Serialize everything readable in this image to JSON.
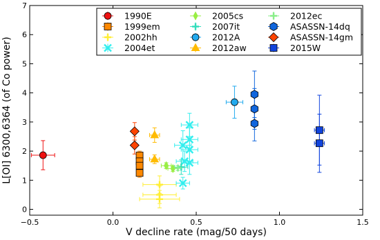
{
  "chart_data": {
    "type": "scatter",
    "xlabel": "V decline rate (mag/50 days)",
    "ylabel": "L[OI] 6300,6364 (of Co power)",
    "xlim": [
      -0.5,
      1.5
    ],
    "ylim": [
      -0.2,
      7
    ],
    "xticks": [
      -0.5,
      0.0,
      0.5,
      1.0,
      1.5
    ],
    "xtick_labels": [
      "−0.5",
      "0.0",
      "0.5",
      "1.0",
      "1.5"
    ],
    "yticks": [
      0,
      1,
      2,
      3,
      4,
      5,
      6,
      7
    ],
    "ytick_labels": [
      "0",
      "1",
      "2",
      "3",
      "4",
      "5",
      "6",
      "7"
    ],
    "grid": false,
    "legend_position": "top-right",
    "series": [
      {
        "name": "1990E",
        "color": "#ee1111",
        "marker": "circle",
        "points": [
          {
            "x": -0.42,
            "y": 1.86,
            "xerr": 0.07,
            "yerr": 0.5
          }
        ]
      },
      {
        "name": "1999em",
        "color": "#ff8800",
        "marker": "square",
        "points": [
          {
            "x": 0.16,
            "y": 1.85,
            "xerr": 0.0,
            "yerr": 0.15
          },
          {
            "x": 0.16,
            "y": 1.65,
            "xerr": 0.0,
            "yerr": 0.15
          },
          {
            "x": 0.16,
            "y": 1.5,
            "xerr": 0.0,
            "yerr": 0.15
          },
          {
            "x": 0.16,
            "y": 1.25,
            "xerr": 0.0,
            "yerr": 0.15
          }
        ]
      },
      {
        "name": "2002hh",
        "color": "#ffee33",
        "marker": "plus",
        "points": [
          {
            "x": 0.28,
            "y": 0.85,
            "xerr": 0.1,
            "yerr": 0.3
          },
          {
            "x": 0.28,
            "y": 0.5,
            "xerr": 0.1,
            "yerr": 0.3
          },
          {
            "x": 0.28,
            "y": 0.35,
            "xerr": 0.12,
            "yerr": 0.3
          }
        ]
      },
      {
        "name": "2004et",
        "color": "#33eeee",
        "marker": "x",
        "points": [
          {
            "x": 0.42,
            "y": 2.2,
            "xerr": 0.05,
            "yerr": 0.5
          },
          {
            "x": 0.43,
            "y": 1.65,
            "xerr": 0.05,
            "yerr": 0.35
          },
          {
            "x": 0.46,
            "y": 2.9,
            "xerr": 0.05,
            "yerr": 0.4
          },
          {
            "x": 0.46,
            "y": 2.4,
            "xerr": 0.05,
            "yerr": 0.4
          },
          {
            "x": 0.46,
            "y": 2.05,
            "xerr": 0.05,
            "yerr": 0.4
          },
          {
            "x": 0.46,
            "y": 1.6,
            "xerr": 0.05,
            "yerr": 0.4
          },
          {
            "x": 0.42,
            "y": 0.9,
            "xerr": 0.04,
            "yerr": 0.2
          }
        ]
      },
      {
        "name": "2005cs",
        "color": "#99ee44",
        "marker": "diamond-thin",
        "points": [
          {
            "x": 0.32,
            "y": 1.5,
            "xerr": 0.03,
            "yerr": 0.1
          },
          {
            "x": 0.36,
            "y": 1.4,
            "xerr": 0.03,
            "yerr": 0.1
          }
        ]
      },
      {
        "name": "2007it",
        "color": "#33ddbb",
        "marker": "plus",
        "points": [
          {
            "x": 0.41,
            "y": 1.45,
            "xerr": 0.04,
            "yerr": 0.25
          }
        ]
      },
      {
        "name": "2012A",
        "color": "#22aaee",
        "marker": "circle",
        "points": [
          {
            "x": 0.73,
            "y": 3.68,
            "xerr": 0.05,
            "yerr": 0.55
          }
        ]
      },
      {
        "name": "2012aw",
        "color": "#ffbb00",
        "marker": "triangle",
        "points": [
          {
            "x": 0.25,
            "y": 2.55,
            "xerr": 0.03,
            "yerr": 0.25
          },
          {
            "x": 0.25,
            "y": 1.72,
            "xerr": 0.03,
            "yerr": 0.15
          }
        ]
      },
      {
        "name": "2012ec",
        "color": "#88ee88",
        "marker": "plus",
        "points": [
          {
            "x": 0.39,
            "y": 1.42,
            "xerr": 0.02,
            "yerr": 0.08
          }
        ]
      },
      {
        "name": "ASASSN-14dq",
        "color": "#1166dd",
        "marker": "hexagon",
        "points": [
          {
            "x": 0.85,
            "y": 3.95,
            "xerr": 0.0,
            "yerr": 0.8
          },
          {
            "x": 0.85,
            "y": 3.45,
            "xerr": 0.0,
            "yerr": 0.7
          },
          {
            "x": 0.85,
            "y": 2.95,
            "xerr": 0.0,
            "yerr": 0.6
          }
        ]
      },
      {
        "name": "ASASSN-14gm",
        "color": "#ff4400",
        "marker": "diamond",
        "points": [
          {
            "x": 0.13,
            "y": 2.68,
            "xerr": 0.0,
            "yerr": 0.3
          },
          {
            "x": 0.13,
            "y": 2.2,
            "xerr": 0.0,
            "yerr": 0.3
          }
        ]
      },
      {
        "name": "2015W",
        "color": "#1144dd",
        "marker": "square",
        "points": [
          {
            "x": 1.24,
            "y": 2.72,
            "xerr": 0.03,
            "yerr": 1.2
          },
          {
            "x": 1.24,
            "y": 2.27,
            "xerr": 0.03,
            "yerr": 1.0
          }
        ]
      }
    ],
    "legend_columns": [
      [
        "1990E",
        "1999em",
        "2002hh",
        "2004et"
      ],
      [
        "2005cs",
        "2007it",
        "2012A",
        "2012aw"
      ],
      [
        "2012ec",
        "ASASSN-14dq",
        "ASASSN-14gm",
        "2015W"
      ]
    ]
  }
}
